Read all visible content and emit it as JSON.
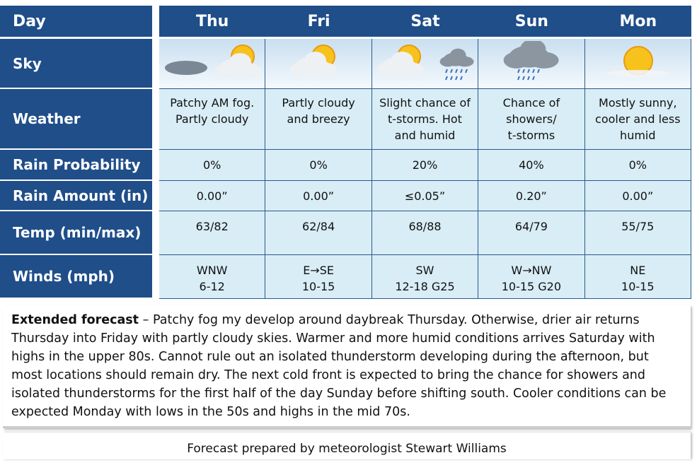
{
  "table": {
    "header": [
      "Day",
      "Thu",
      "Fri",
      "Sat",
      "Sun",
      "Mon"
    ],
    "rows": [
      {
        "label": "Sky"
      },
      {
        "label": "Weather",
        "cells": [
          [
            "Patchy AM fog.",
            "Partly cloudy"
          ],
          [
            "Partly cloudy",
            "and breezy"
          ],
          [
            "Slight chance of",
            "t-storms. Hot",
            "and humid"
          ],
          [
            "Chance of",
            "showers/",
            "t-storms"
          ],
          [
            "Mostly sunny,",
            "cooler and less",
            "humid"
          ]
        ]
      },
      {
        "label": "Rain Probability",
        "cells": [
          [
            "0%"
          ],
          [
            "0%"
          ],
          [
            "20%"
          ],
          [
            "40%"
          ],
          [
            "0%"
          ]
        ]
      },
      {
        "label": "Rain Amount (in)",
        "cells": [
          [
            "0.00”"
          ],
          [
            "0.00”"
          ],
          [
            "≤0.05”"
          ],
          [
            "0.20”"
          ],
          [
            "0.00”"
          ]
        ]
      },
      {
        "label": "Temp (min/max)",
        "cells": [
          [
            "63/82"
          ],
          [
            "62/84"
          ],
          [
            "68/88"
          ],
          [
            "64/79"
          ],
          [
            "55/75"
          ]
        ]
      },
      {
        "label": "Winds (mph)",
        "cells": [
          [
            "WNW",
            "6-12"
          ],
          [
            "E→SE",
            "10-15"
          ],
          [
            "SW",
            "12-18 G25"
          ],
          [
            "W→NW",
            "10-15 G20"
          ],
          [
            "NE",
            "10-15"
          ]
        ]
      }
    ]
  },
  "extended": {
    "label": "Extended forecast",
    "separator": "–",
    "text": "Patchy fog my develop around daybreak Thursday. Otherwise, drier air returns Thursday into Friday with partly cloudy skies. Warmer and more humid conditions arrives Saturday with highs in the upper 80s. Cannot rule out an isolated thunderstorm developing during the afternoon, but most locations should remain dry. The next cold front is expected to bring the chance for showers and isolated thunderstorms for the first half of the day Sunday before shifting south. Cooler conditions can be expected Monday with lows in the 50s and highs in the mid 70s."
  },
  "footer": "Forecast prepared by meteorologist Stewart Williams"
}
